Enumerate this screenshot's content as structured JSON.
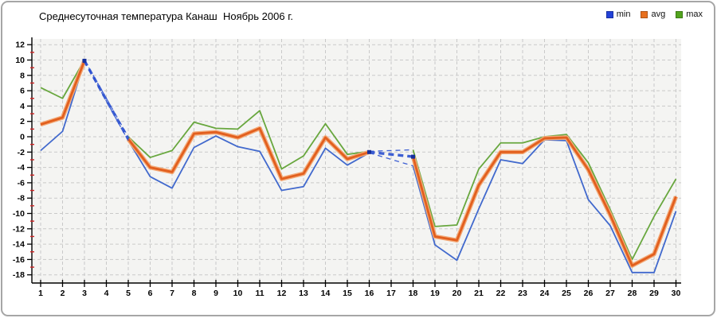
{
  "title": "Среднесуточная температура Канаш  Ноябрь 2006 г.",
  "legend": {
    "items": [
      {
        "label": "min",
        "color": "#2342d8"
      },
      {
        "label": "avg",
        "color": "#e8701f"
      },
      {
        "label": "max",
        "color": "#52a41e"
      }
    ]
  },
  "axes": {
    "y_ticks": [
      12,
      10,
      8,
      6,
      4,
      2,
      0,
      -2,
      -4,
      -6,
      -8,
      -10,
      -12,
      -14,
      -16,
      -18
    ],
    "y_minor_ticks": [
      11,
      9,
      7,
      5,
      3,
      1,
      -1,
      -3,
      -5,
      -7,
      -9,
      -11,
      -13,
      -15,
      -17
    ],
    "x_ticks": [
      1,
      2,
      3,
      4,
      5,
      6,
      7,
      8,
      9,
      10,
      11,
      12,
      13,
      14,
      15,
      16,
      17,
      18,
      19,
      20,
      21,
      22,
      23,
      24,
      25,
      26,
      27,
      28,
      29,
      30
    ]
  },
  "chart_data": {
    "type": "line",
    "title": "Среднесуточная температура Канаш  Ноябрь 2006 г.",
    "xlabel": "",
    "ylabel": "",
    "x": [
      1,
      2,
      3,
      4,
      5,
      6,
      7,
      8,
      9,
      10,
      11,
      12,
      13,
      14,
      15,
      16,
      17,
      18,
      19,
      20,
      21,
      22,
      23,
      24,
      25,
      26,
      27,
      28,
      29,
      30
    ],
    "ylim": [
      -18,
      12
    ],
    "ytick_step": 2,
    "grid": true,
    "legend_position": "top-right",
    "missing_days": [
      4,
      17
    ],
    "series": [
      {
        "name": "min",
        "color": "#4169cd",
        "values": [
          -1.8,
          0.7,
          9.8,
          null,
          -0.5,
          -5.2,
          -6.7,
          -1.4,
          0.1,
          -1.3,
          -1.9,
          -7.0,
          -6.5,
          -1.5,
          -3.7,
          -2.1,
          null,
          -3.8,
          -14.1,
          -16.1,
          -9.4,
          -3.0,
          -3.5,
          -0.4,
          -0.5,
          -8.2,
          -11.6,
          -17.7,
          -17.7,
          -9.7
        ]
      },
      {
        "name": "avg",
        "color": "#e25f1e",
        "values": [
          1.6,
          2.5,
          9.9,
          null,
          -0.3,
          -4.0,
          -4.6,
          0.4,
          0.6,
          -0.1,
          1.1,
          -5.5,
          -4.8,
          -0.1,
          -2.9,
          -2.0,
          null,
          -2.6,
          -13.0,
          -13.5,
          -6.3,
          -2.0,
          -2.0,
          -0.2,
          -0.1,
          -4.3,
          -10.2,
          -16.8,
          -15.3,
          -7.8
        ]
      },
      {
        "name": "max",
        "color": "#68a73e",
        "values": [
          6.4,
          5.0,
          10.0,
          null,
          0.0,
          -2.7,
          -1.8,
          1.9,
          1.1,
          1.0,
          3.4,
          -4.2,
          -2.5,
          1.7,
          -2.3,
          -1.9,
          null,
          -1.7,
          -11.7,
          -11.5,
          -4.2,
          -0.8,
          -0.8,
          0.0,
          0.3,
          -3.4,
          -9.5,
          -16.0,
          -10.4,
          -5.5
        ]
      }
    ],
    "gap_bridges": [
      {
        "from_day": 3,
        "to_day": 5
      },
      {
        "from_day": 16,
        "to_day": 18
      }
    ],
    "bridge_style": {
      "color": "#2a4fd0",
      "dashed": true
    },
    "markers": [
      {
        "day": 3,
        "value": 9.9
      },
      {
        "day": 16,
        "value": -2.0
      },
      {
        "day": 18,
        "value": -2.6
      }
    ],
    "colors": {
      "plot_bg": "#f4f4f2",
      "gridline": "#c9c9c9",
      "axis": "#000000",
      "minor_tick": "#cc2222",
      "marker": "#16309c"
    }
  }
}
